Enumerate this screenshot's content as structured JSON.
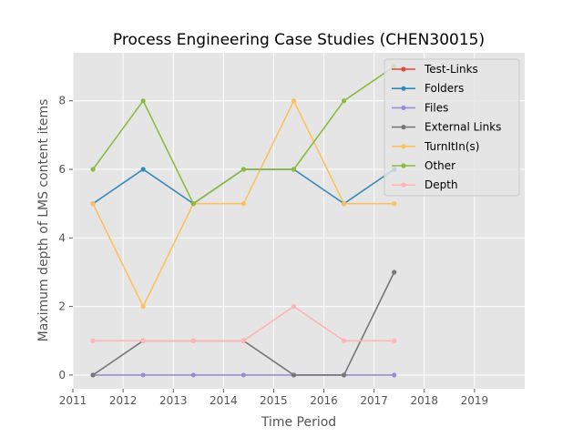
{
  "chart_data": {
    "type": "line",
    "title": "Process Engineering Case Studies (CHEN30015)",
    "xlabel": "Time Period",
    "ylabel": "Maximum depth of LMS content items",
    "xlim": [
      2011,
      2020
    ],
    "ylim": [
      -0.4,
      9.4
    ],
    "xticks": [
      "2011",
      "2012",
      "2013",
      "2014",
      "2015",
      "2016",
      "2017",
      "2018",
      "2019"
    ],
    "yticks": [
      "0",
      "2",
      "4",
      "6",
      "8"
    ],
    "grid": true,
    "legend_position": "top-right",
    "x": [
      2011.4,
      2012.4,
      2013.4,
      2014.4,
      2015.4,
      2016.4,
      2017.4
    ],
    "series": [
      {
        "name": "Test-Links",
        "color": "#E24A33",
        "values": [
          null,
          null,
          null,
          null,
          null,
          null,
          null
        ]
      },
      {
        "name": "Folders",
        "color": "#348ABD",
        "values": [
          5,
          6,
          5,
          6,
          6,
          5,
          6
        ]
      },
      {
        "name": "Files",
        "color": "#988ED5",
        "values": [
          0,
          0,
          0,
          0,
          0,
          0,
          0
        ]
      },
      {
        "name": "External Links",
        "color": "#777777",
        "values": [
          0,
          1,
          1,
          1,
          0,
          0,
          3
        ]
      },
      {
        "name": "TurnItIn(s)",
        "color": "#FBC15E",
        "values": [
          5,
          2,
          5,
          5,
          8,
          5,
          5
        ]
      },
      {
        "name": "Other",
        "color": "#8EBA42",
        "values": [
          6,
          8,
          5,
          6,
          6,
          8,
          9
        ]
      },
      {
        "name": "Depth",
        "color": "#FFB5B8",
        "values": [
          1,
          1,
          1,
          1,
          2,
          1,
          1
        ]
      }
    ]
  }
}
